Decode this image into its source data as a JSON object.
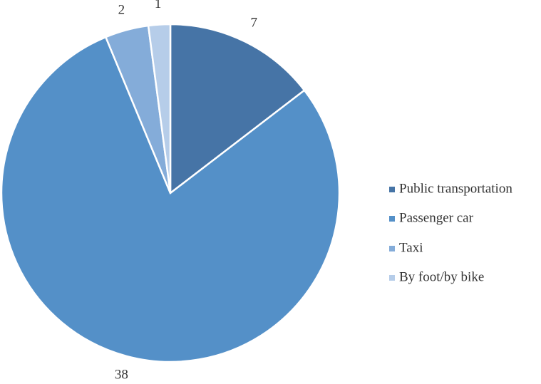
{
  "chart_data": {
    "type": "pie",
    "categories": [
      "Public transportation",
      "Passenger car",
      "Taxi",
      "By foot/by bike"
    ],
    "values": [
      7,
      38,
      2,
      1
    ],
    "colors": [
      "#4674a6",
      "#5490c8",
      "#84acd9",
      "#b6cde9"
    ],
    "legend": "right"
  }
}
